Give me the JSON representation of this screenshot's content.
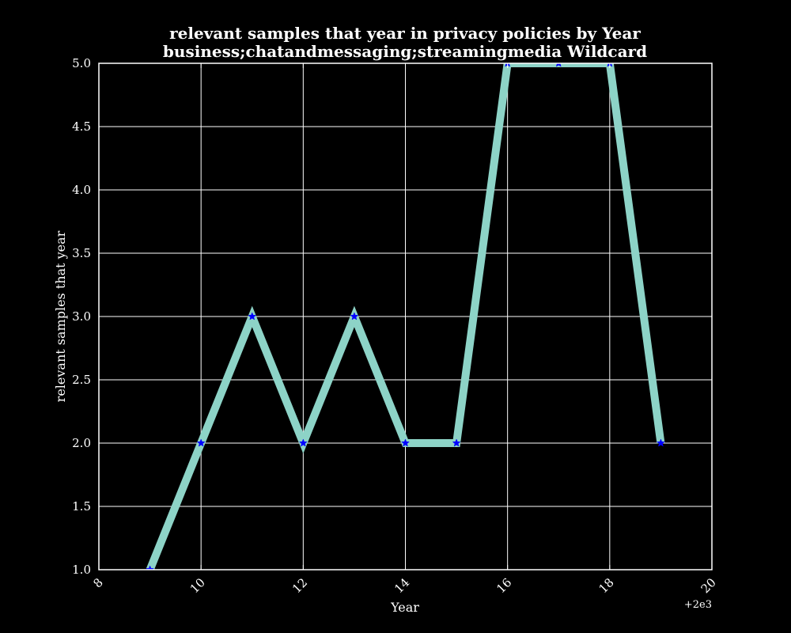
{
  "chart_data": {
    "type": "line",
    "title": "relevant samples that year in privacy policies by Year",
    "subtitle": "business;chatandmessaging;streamingmedia Wildcard",
    "xlabel": "Year",
    "ylabel": "relevant samples that year",
    "x_offset_label": "+2e3",
    "xlim": [
      8,
      20
    ],
    "ylim": [
      1.0,
      5.0
    ],
    "x_ticks": [
      8,
      10,
      12,
      14,
      16,
      18,
      20
    ],
    "x_tick_labels": [
      "8",
      "10",
      "12",
      "14",
      "16",
      "18",
      "20"
    ],
    "y_ticks": [
      1.0,
      1.5,
      2.0,
      2.5,
      3.0,
      3.5,
      4.0,
      4.5,
      5.0
    ],
    "y_tick_labels": [
      "1.0",
      "1.5",
      "2.0",
      "2.5",
      "3.0",
      "3.5",
      "4.0",
      "4.5",
      "5.0"
    ],
    "grid": true,
    "series": [
      {
        "x": [
          9,
          10,
          11,
          12,
          13,
          14,
          15,
          16,
          17,
          18,
          19
        ],
        "values": [
          1,
          2,
          3,
          2,
          3,
          2,
          2,
          5,
          5,
          5,
          2
        ],
        "line_color": "#8dd3c7",
        "marker": "star",
        "marker_color": "#0000ff"
      }
    ],
    "colors": {
      "background": "#000000",
      "axes": "#ffffff",
      "grid": "#ffffff",
      "text": "#ffffff"
    }
  }
}
